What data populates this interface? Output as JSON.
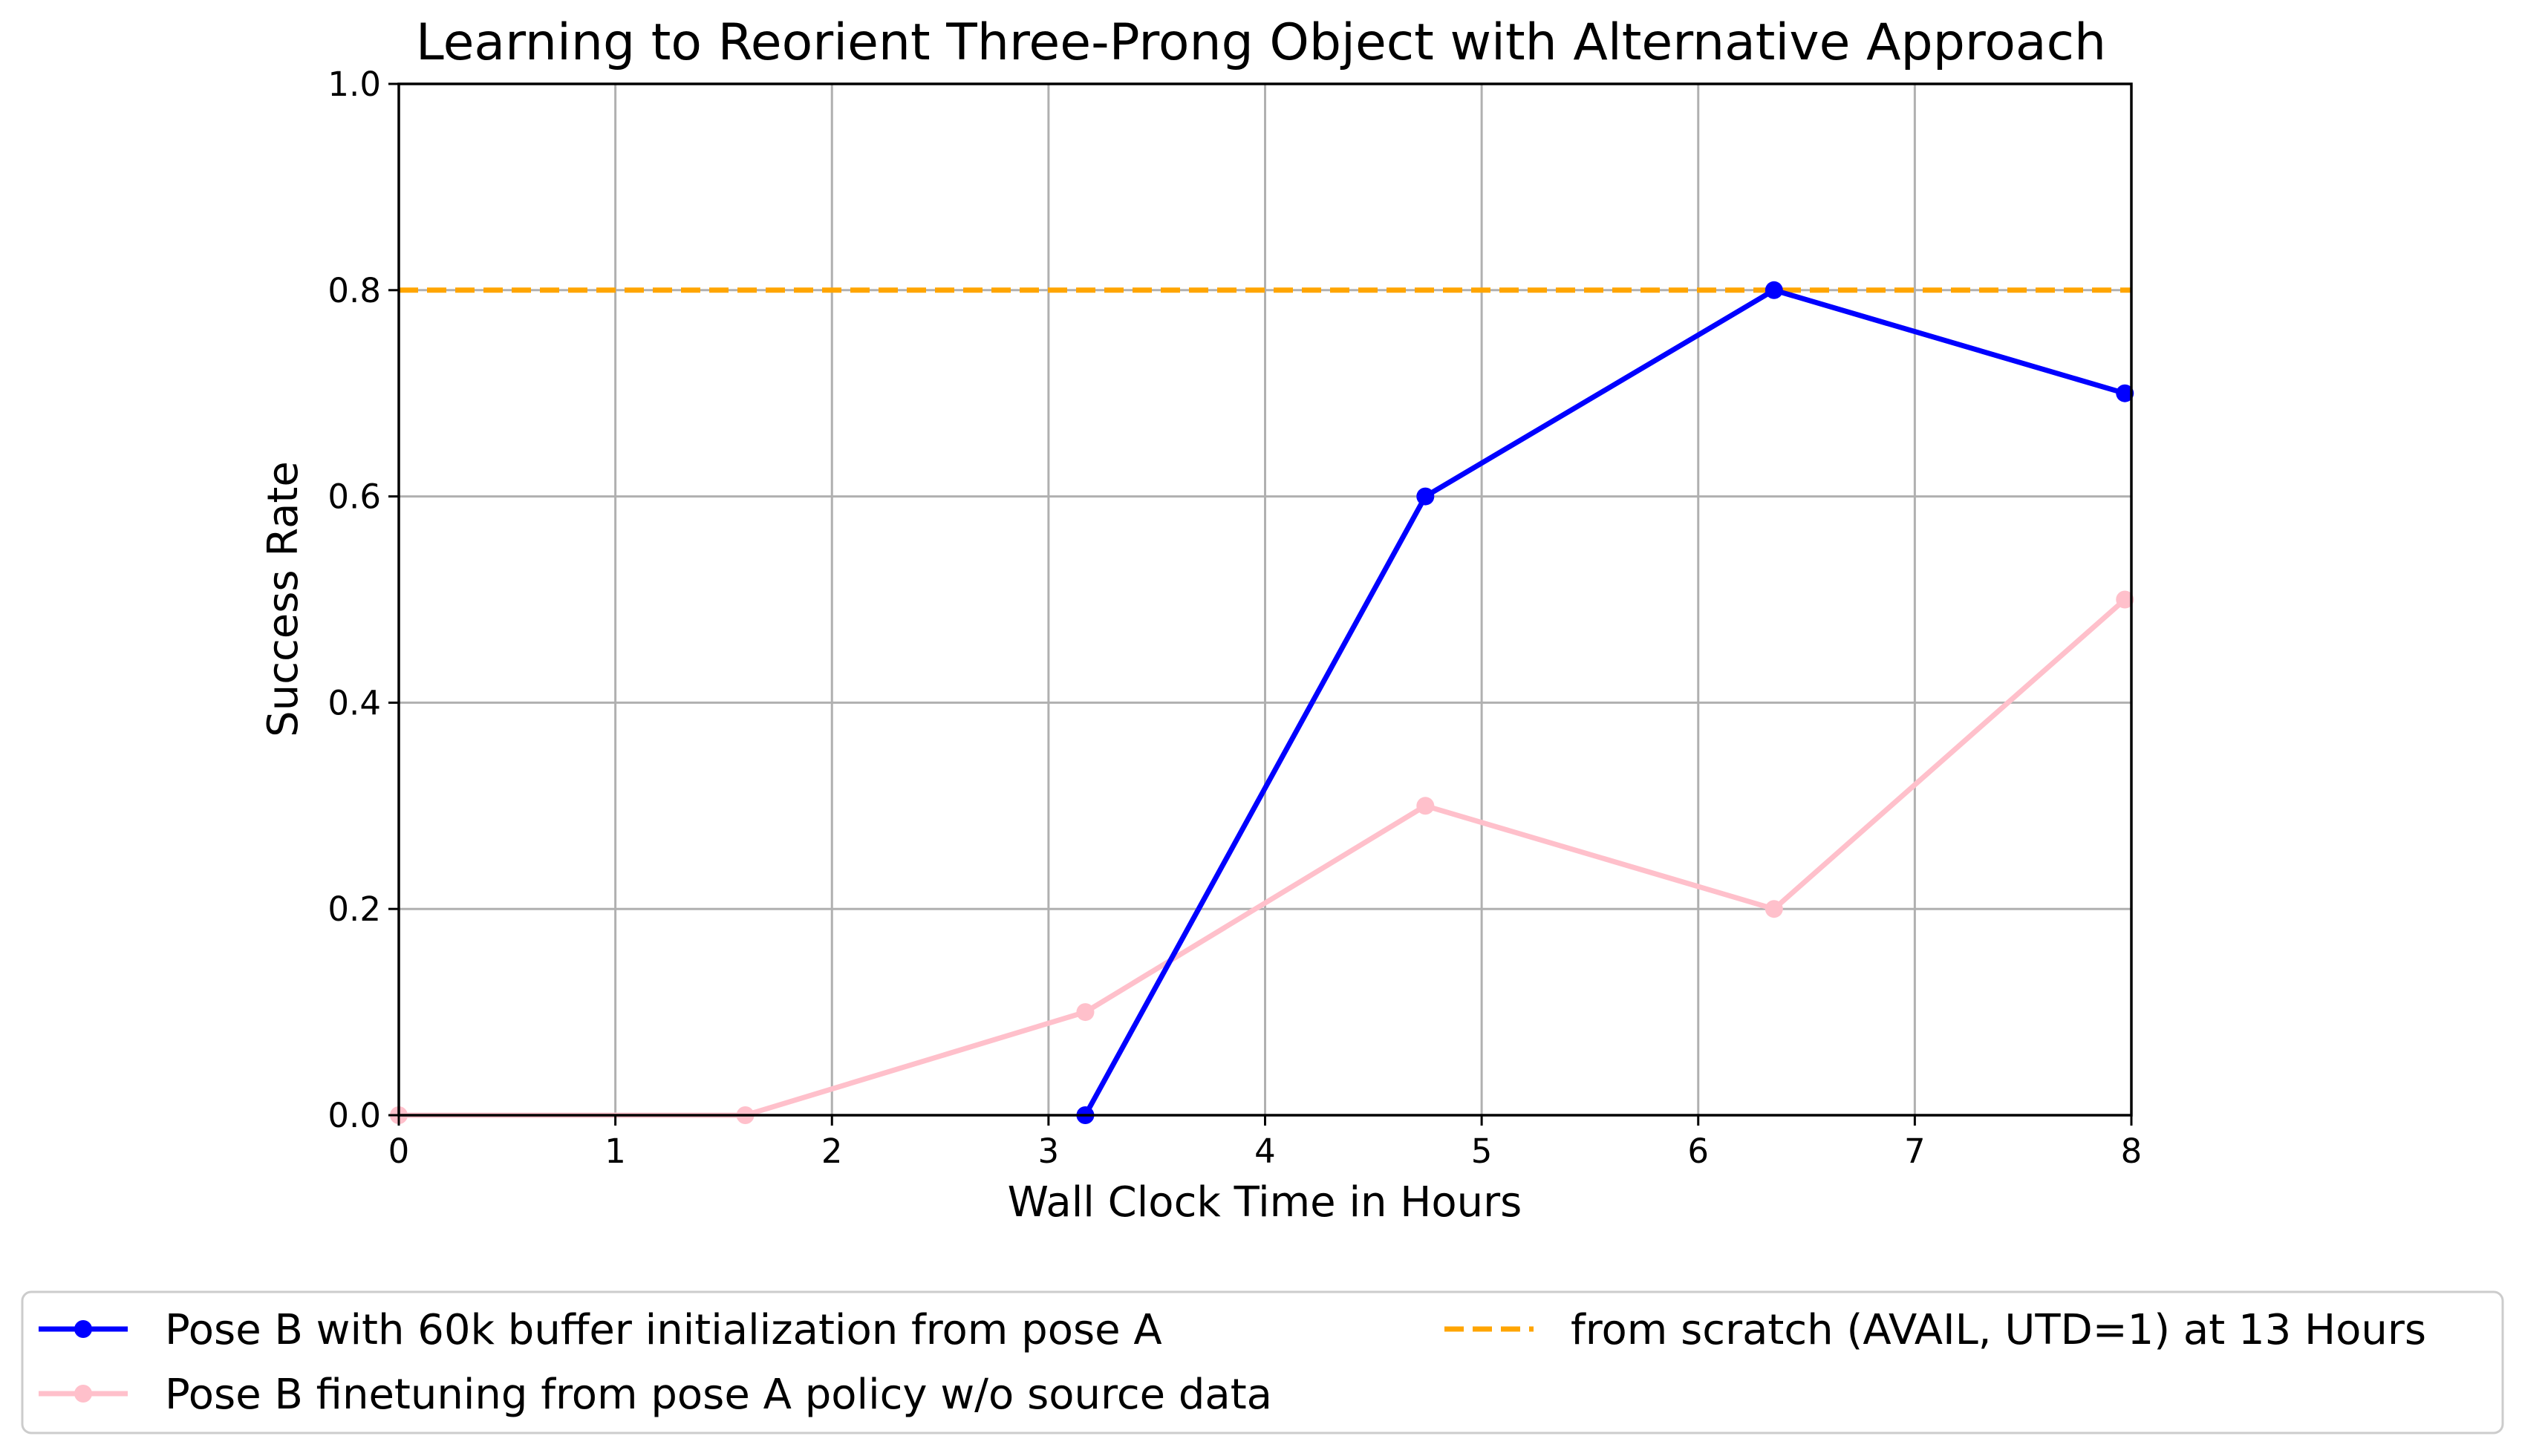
{
  "chart_data": {
    "type": "line",
    "title": "Learning to Reorient Three-Prong Object with Alternative Approach",
    "xlabel": "Wall Clock Time in Hours",
    "ylabel": "Success Rate",
    "xlim": [
      0,
      8
    ],
    "ylim": [
      0,
      1.0
    ],
    "xticks": [
      0,
      1,
      2,
      3,
      4,
      5,
      6,
      7,
      8
    ],
    "yticks": [
      0.0,
      0.2,
      0.4,
      0.6,
      0.8,
      1.0
    ],
    "xtick_labels": [
      "0",
      "1",
      "2",
      "3",
      "4",
      "5",
      "6",
      "7",
      "8"
    ],
    "ytick_labels": [
      "0.0",
      "0.2",
      "0.4",
      "0.6",
      "0.8",
      "1.0"
    ],
    "grid": true,
    "legend_position": "below plot, two columns",
    "series": [
      {
        "name": "Pose B with 60k buffer initialization from pose A",
        "color": "#0000ff",
        "style": "solid",
        "marker": "circle",
        "x": [
          3.17,
          4.74,
          6.35,
          7.97
        ],
        "y": [
          0.0,
          0.6,
          0.8,
          0.7
        ]
      },
      {
        "name": "Pose B finetuning from pose A policy w/o source data",
        "color": "#ffc0cb",
        "style": "solid",
        "marker": "circle",
        "x": [
          0.0,
          1.6,
          3.17,
          4.74,
          6.35,
          7.97
        ],
        "y": [
          0.0,
          0.0,
          0.1,
          0.3,
          0.2,
          0.5
        ]
      },
      {
        "name": "from scratch (AVAIL, UTD=1) at 13 Hours",
        "color": "#ffa500",
        "style": "dashed",
        "marker": "none",
        "x": [
          0,
          8
        ],
        "y": [
          0.8,
          0.8
        ]
      }
    ]
  }
}
